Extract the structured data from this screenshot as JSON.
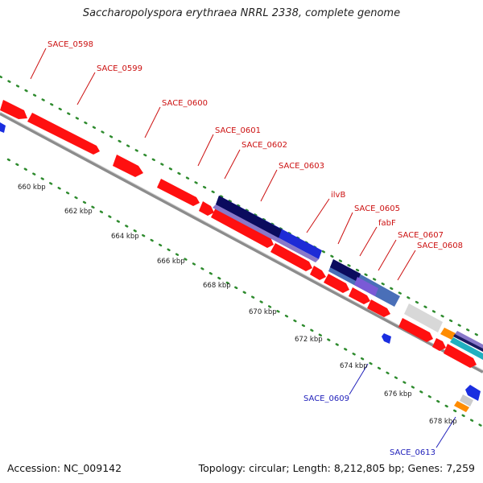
{
  "title": "Saccharopolyspora erythraea NRRL 2338, complete genome",
  "footer": {
    "accession": "Accession: NC_009142",
    "summary": "Topology: circular; Length: 8,212,805 bp; Genes: 7,259"
  },
  "colors": {
    "forward_gene": "#ff1010",
    "reverse_gene": "#1a2ee0",
    "backbone": "#8c8c8c",
    "tick_dots": "#2e8b2e",
    "forward_label": "#cc1111",
    "reverse_label": "#2222bb"
  },
  "forward_labels": [
    "SACE_0598",
    "SACE_0599",
    "SACE_0600",
    "SACE_0601",
    "SACE_0602",
    "SACE_0603",
    "ilvB",
    "SACE_0605",
    "fabF",
    "SACE_0607",
    "SACE_0608"
  ],
  "reverse_labels": [
    "SACE_0609",
    "SACE_0613"
  ],
  "ticks": [
    "660 kbp",
    "662 kbp",
    "664 kbp",
    "666 kbp",
    "668 kbp",
    "670 kbp",
    "672 kbp",
    "674 kbp",
    "676 kbp",
    "678 kbp"
  ]
}
